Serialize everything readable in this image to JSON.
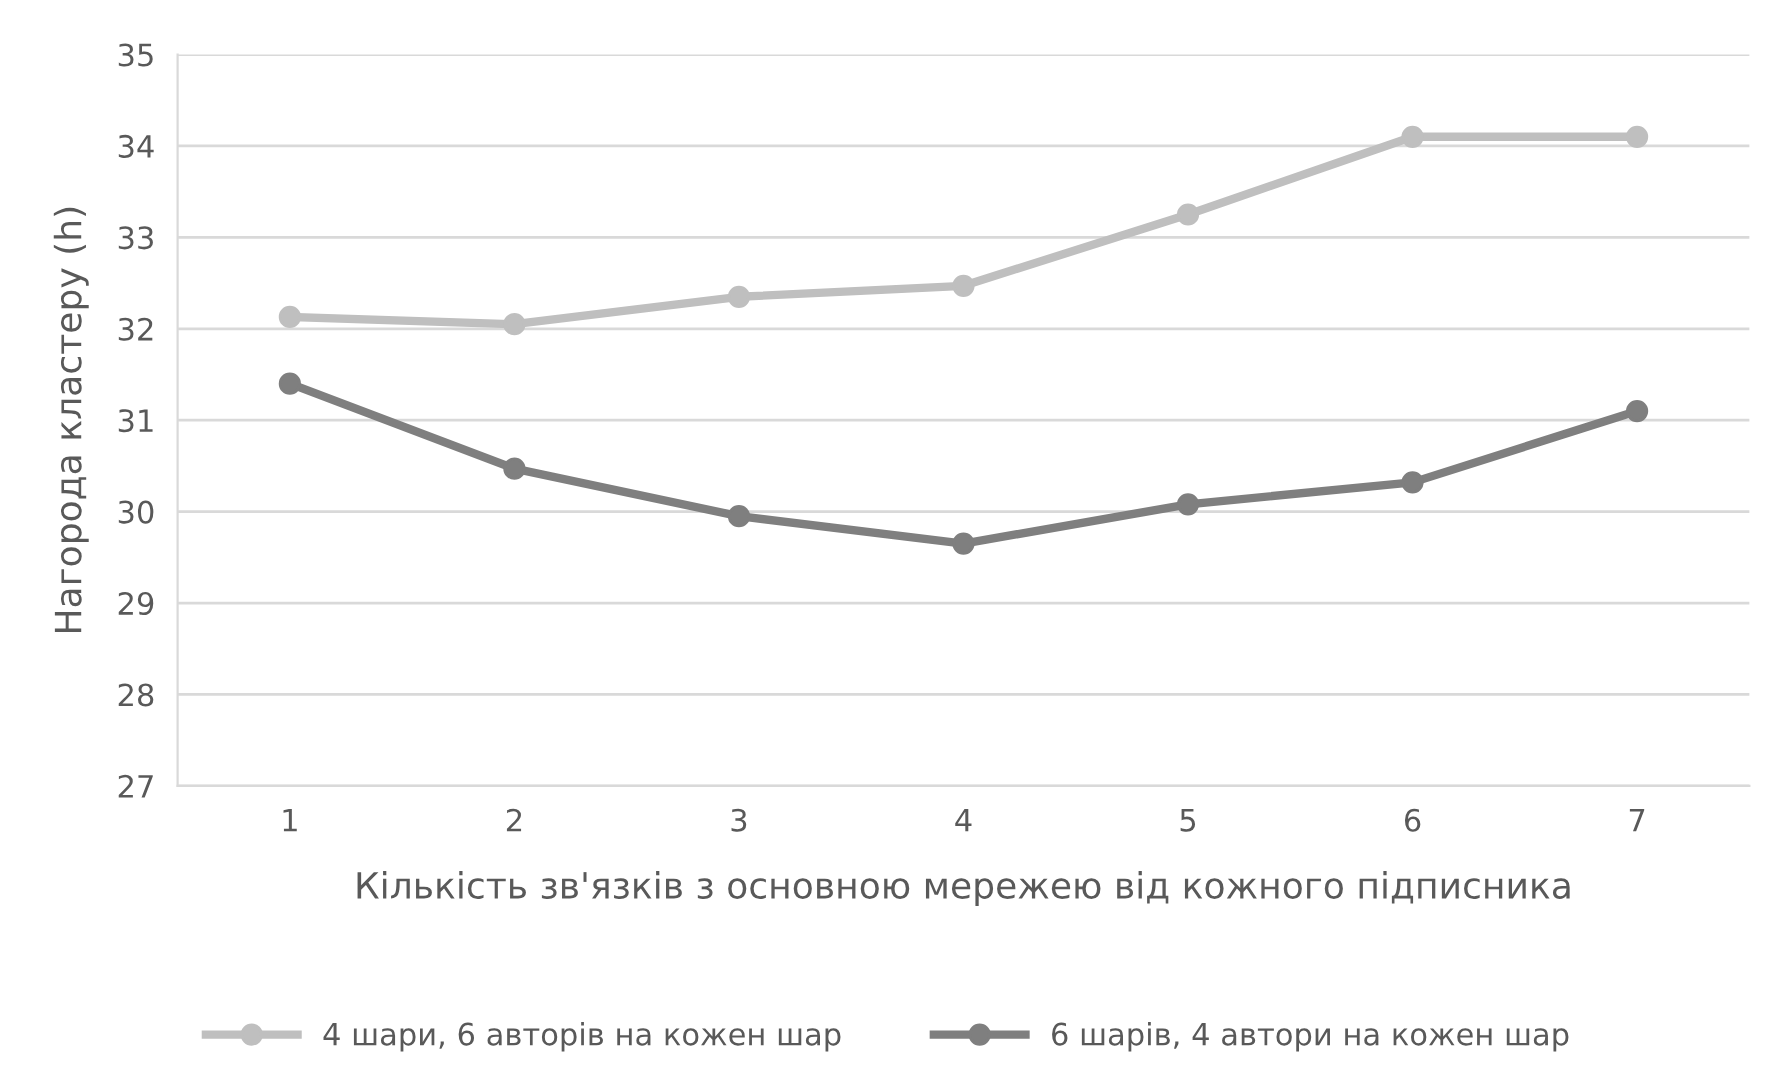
{
  "chart_data": {
    "type": "line",
    "xlabel": "Кількість зв'язків з основною мережею від кожного підписника",
    "ylabel": "Нагорода кластеру (h)",
    "categories": [
      "1",
      "2",
      "3",
      "4",
      "5",
      "6",
      "7"
    ],
    "series": [
      {
        "name": "4 шари, 6 авторів на кожен шар",
        "color": "#bfbfbf",
        "values": [
          32.13,
          32.05,
          32.35,
          32.47,
          33.25,
          34.1,
          34.1
        ]
      },
      {
        "name": "6 шарів, 4 автори на кожен шар",
        "color": "#7f7f7f",
        "values": [
          31.4,
          30.47,
          29.95,
          29.65,
          30.08,
          30.32,
          31.1
        ]
      }
    ],
    "ylim": [
      27,
      35
    ],
    "yticks": [
      27,
      28,
      29,
      30,
      31,
      32,
      33,
      34,
      35
    ],
    "grid": "y",
    "legend": "bottom",
    "marker": "circle",
    "line_style": "solid"
  }
}
